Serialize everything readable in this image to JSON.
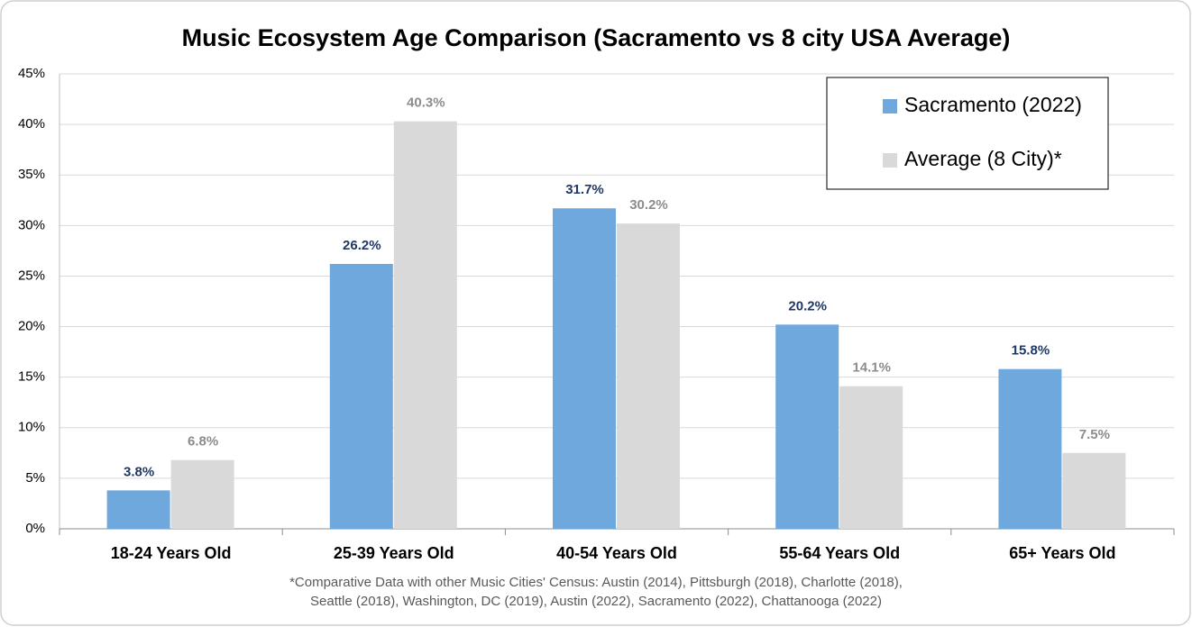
{
  "chart_data": {
    "type": "bar",
    "title": "Music Ecosystem Age Comparison (Sacramento vs 8 city USA Average)",
    "categories": [
      "18-24 Years Old",
      "25-39 Years Old",
      "40-54 Years Old",
      "55-64 Years Old",
      "65+ Years Old"
    ],
    "series": [
      {
        "name": "Sacramento (2022)",
        "color": "#6fa8dc",
        "label_color": "#1f3864",
        "values": [
          3.8,
          26.2,
          31.7,
          20.2,
          15.8
        ],
        "value_labels": [
          "3.8%",
          "26.2%",
          "31.7%",
          "20.2%",
          "15.8%"
        ]
      },
      {
        "name": "Average (8 City)*",
        "color": "#d9d9d9",
        "label_color": "#8c8c8c",
        "values": [
          6.8,
          40.3,
          30.2,
          14.1,
          7.5
        ],
        "value_labels": [
          "6.8%",
          "40.3%",
          "30.2%",
          "14.1%",
          "7.5%"
        ]
      }
    ],
    "ylim": [
      0,
      45
    ],
    "yticks": [
      {
        "value": 0,
        "label": "0%"
      },
      {
        "value": 5,
        "label": "5%"
      },
      {
        "value": 10,
        "label": "10%"
      },
      {
        "value": 15,
        "label": "15%"
      },
      {
        "value": 20,
        "label": "20%"
      },
      {
        "value": 25,
        "label": "25%"
      },
      {
        "value": 30,
        "label": "30%"
      },
      {
        "value": 35,
        "label": "35%"
      },
      {
        "value": 40,
        "label": "40%"
      },
      {
        "value": 45,
        "label": "45%"
      }
    ],
    "grid": true,
    "legend": "upper right",
    "footnote": [
      "*Comparative Data with other Music Cities' Census: Austin (2014), Pittsburgh (2018), Charlotte (2018),",
      "Seattle (2018), Washington, DC (2019), Austin (2022), Sacramento (2022), Chattanooga (2022)"
    ]
  }
}
